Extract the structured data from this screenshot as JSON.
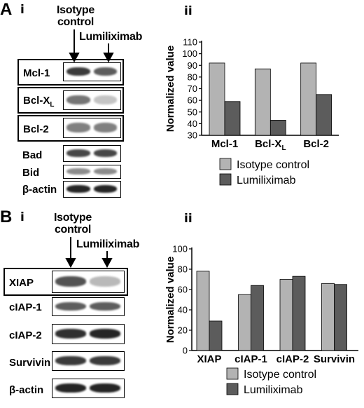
{
  "panel_a": {
    "letter": "A",
    "sub_i": "i",
    "sub_ii": "ii",
    "col1_line1": "Isotype",
    "col1_line2": "control",
    "col2": "Lumiliximab",
    "blots": [
      {
        "label": "Mcl-1",
        "boxed": true,
        "band1": 0.85,
        "band2": 0.7
      },
      {
        "label": "Bcl-XL",
        "boxed": true,
        "band1": 0.6,
        "band2": 0.25
      },
      {
        "label": "Bcl-2",
        "boxed": true,
        "band1": 0.55,
        "band2": 0.55
      },
      {
        "label": "Bad",
        "boxed": false,
        "band1": 0.8,
        "band2": 0.8
      },
      {
        "label": "Bid",
        "boxed": false,
        "band1": 0.5,
        "band2": 0.5
      },
      {
        "label": "β-actin",
        "boxed": false,
        "band1": 0.95,
        "band2": 0.95
      }
    ]
  },
  "panel_b": {
    "letter": "B",
    "sub_i": "i",
    "sub_ii": "ii",
    "col1_line1": "Isotype",
    "col1_line2": "control",
    "col2": "Lumiliximab",
    "blots": [
      {
        "label": "XIAP",
        "boxed": true,
        "band1": 0.75,
        "band2": 0.3
      },
      {
        "label": "cIAP-1",
        "boxed": false,
        "band1": 0.7,
        "band2": 0.7
      },
      {
        "label": "cIAP-2",
        "boxed": false,
        "band1": 0.9,
        "band2": 0.95
      },
      {
        "label": "Survivin",
        "boxed": false,
        "band1": 0.85,
        "band2": 0.85
      },
      {
        "label": "β-actin",
        "boxed": false,
        "band1": 0.95,
        "band2": 0.95
      }
    ]
  },
  "colors": {
    "isotype": "#b3b3b3",
    "lumiliximab": "#5c5c5c",
    "band": "#1a1a1a"
  },
  "chart_data": [
    {
      "type": "bar",
      "ylabel": "Normalized value",
      "ylim": [
        30,
        110
      ],
      "yticks": [
        30,
        40,
        50,
        60,
        70,
        80,
        90,
        100,
        110
      ],
      "categories": [
        "Mcl-1",
        "Bcl-XL",
        "Bcl-2"
      ],
      "series": [
        {
          "name": "Isotype control",
          "values": [
            92,
            87,
            92
          ]
        },
        {
          "name": "Lumiliximab",
          "values": [
            59,
            43,
            65
          ]
        }
      ],
      "legend": "below"
    },
    {
      "type": "bar",
      "ylabel": "Normalized value",
      "ylim": [
        0,
        100
      ],
      "yticks": [
        0,
        20,
        40,
        60,
        80,
        100
      ],
      "categories": [
        "XIAP",
        "cIAP-1",
        "cIAP-2",
        "Survivin"
      ],
      "series": [
        {
          "name": "Isotype control",
          "values": [
            78,
            55,
            70,
            66
          ]
        },
        {
          "name": "Lumiliximab",
          "values": [
            29,
            64,
            73,
            65
          ]
        }
      ],
      "legend": "below"
    }
  ]
}
